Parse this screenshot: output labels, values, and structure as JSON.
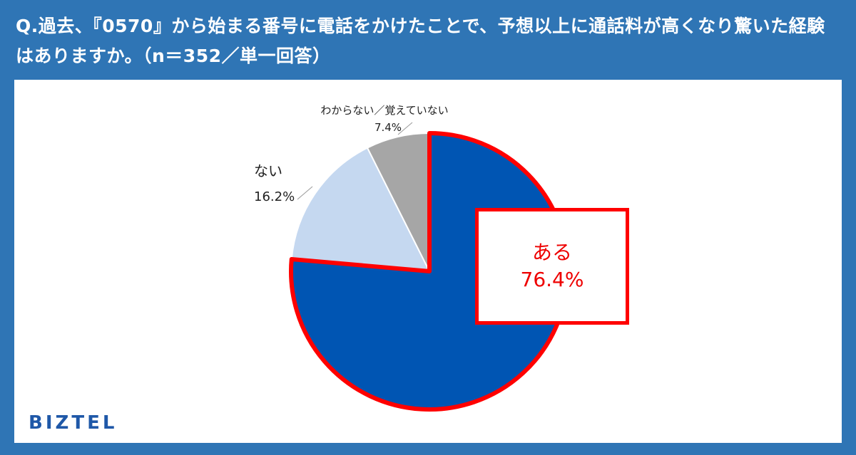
{
  "header": {
    "title": "Q.過去、『0570』から始まる番号に電話をかけたことで、予想以上に通話料が高くなり驚いた経験はありますか。（n＝352／単一回答）"
  },
  "brand": {
    "logo_text": "BIZTEL"
  },
  "colors": {
    "background": "#2f75b5",
    "highlight_border": "#ff0000",
    "highlight_text": "#ee0000"
  },
  "chart_data": {
    "type": "pie",
    "title": "Q.過去、『0570』から始まる番号に電話をかけたことで、予想以上に通話料が高くなり驚いた経験はありますか。（n＝352／単一回答）",
    "sample": "n＝352",
    "unit": "%",
    "start": "12 o'clock",
    "direction": "clockwise",
    "legend": "none",
    "slices": [
      {
        "label": "ある",
        "value": 76.4,
        "display": "76.4%",
        "color": "#0055b3",
        "highlighted": true
      },
      {
        "label": "ない",
        "value": 16.2,
        "display": "16.2%",
        "color": "#c5d8f0",
        "highlighted": false
      },
      {
        "label": "わからない／覚えていない",
        "value": 7.4,
        "display": "7.4%",
        "color": "#a6a6a6",
        "highlighted": false
      }
    ]
  }
}
